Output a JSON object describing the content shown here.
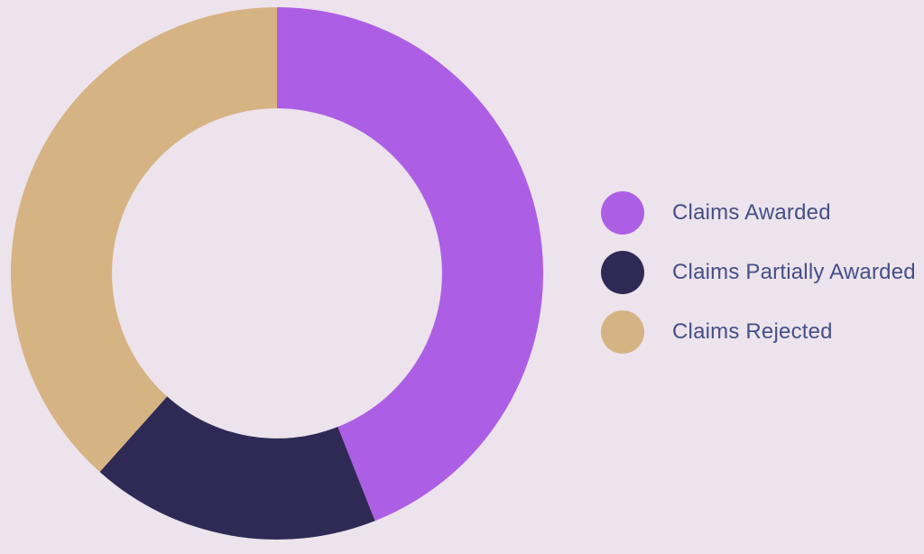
{
  "page": {
    "background_color": "#ece3ec"
  },
  "chart_data": {
    "type": "pie",
    "variant": "donut",
    "title": "",
    "categories": [
      "Claims Awarded",
      "Claims Partially Awarded",
      "Claims Rejected"
    ],
    "values": [
      44,
      17.6,
      38.4
    ],
    "unit": "percent",
    "colors": [
      "#ac5fe4",
      "#2f2a55",
      "#d6b383"
    ],
    "start_angle_deg": 0,
    "direction": "clockwise",
    "inner_radius_ratio": 0.62,
    "grid": false,
    "legend_position": "right"
  },
  "legend": {
    "items": [
      {
        "label": "Claims Awarded",
        "color": "#ac5fe4",
        "swatch_icon": "circle-swatch-icon"
      },
      {
        "label": "Claims Partially Awarded",
        "color": "#2f2a55",
        "swatch_icon": "circle-swatch-icon"
      },
      {
        "label": "Claims Rejected",
        "color": "#d6b383",
        "swatch_icon": "circle-swatch-icon"
      }
    ]
  }
}
